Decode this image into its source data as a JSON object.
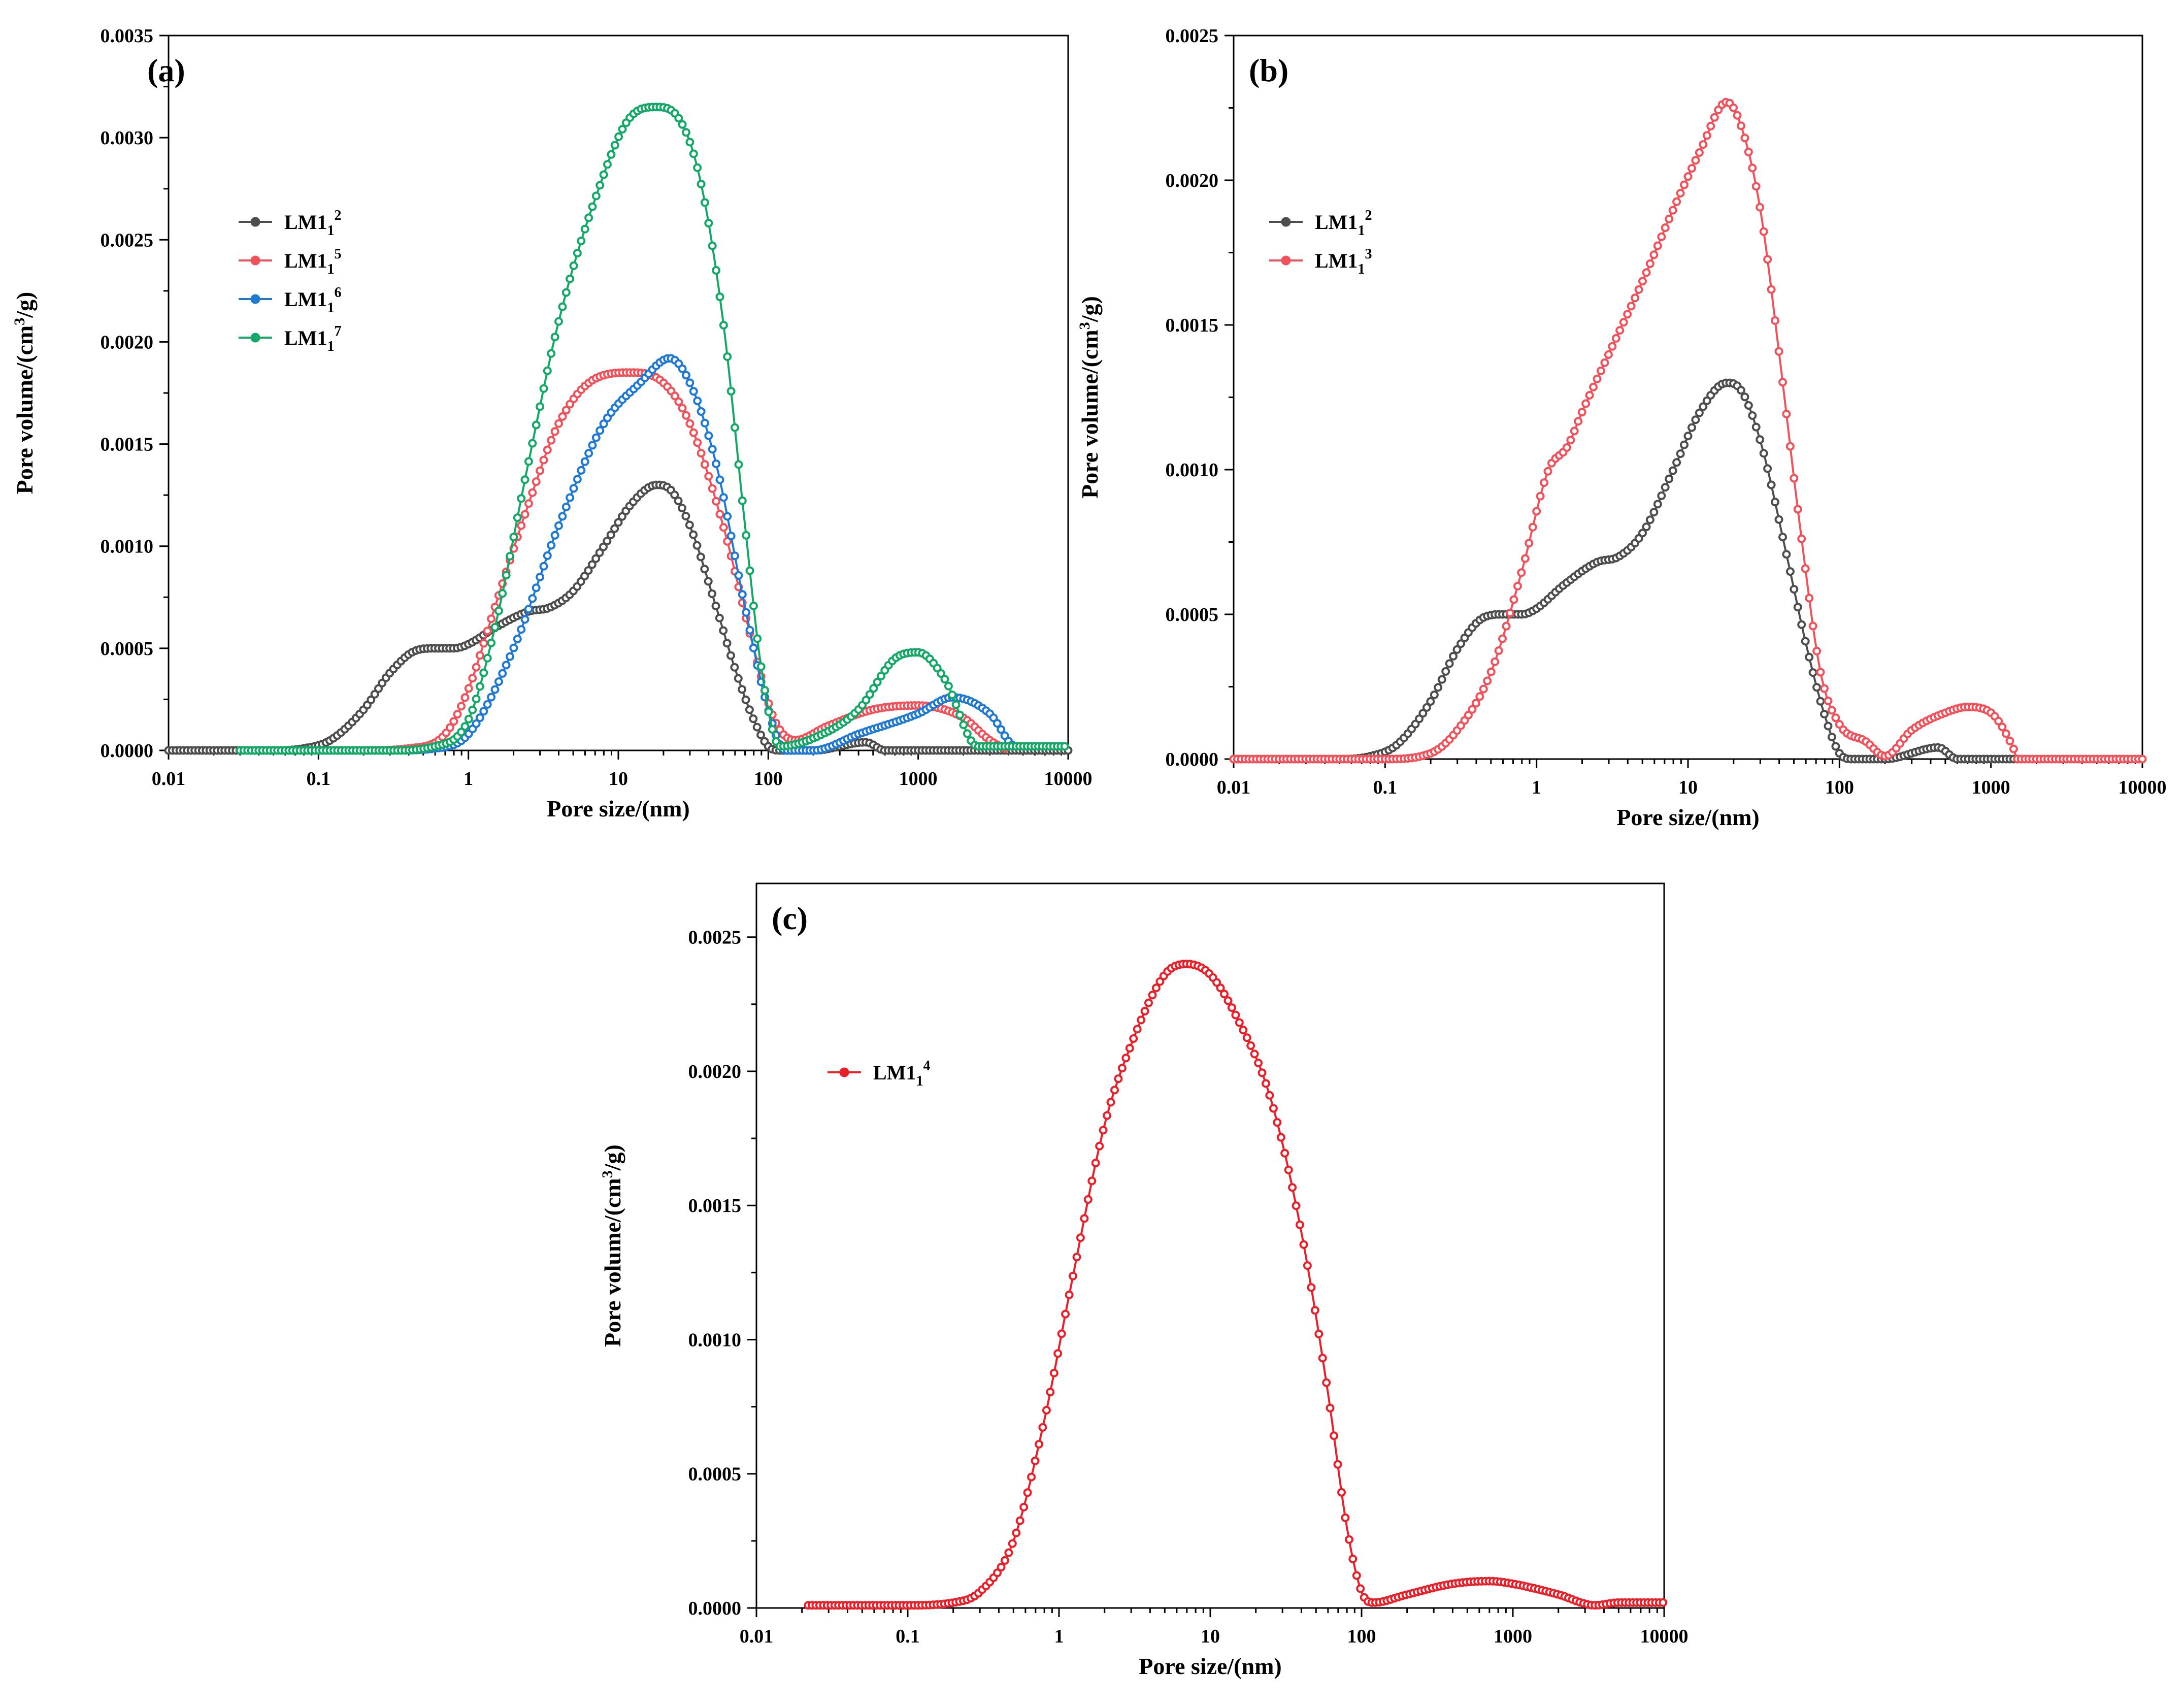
{
  "chart_data": [
    {
      "id": "a",
      "type": "line",
      "panel_label": "(a)",
      "xlabel": "Pore size/(nm)",
      "ylabel": "Pore volume/(cm",
      "ylabel_sup": "3",
      "ylabel_end": "/g)",
      "xscale": "log",
      "xlim": [
        0.01,
        10000
      ],
      "ylim": [
        0,
        0.0035
      ],
      "xticks": [
        "0.01",
        "0.1",
        "1",
        "10",
        "100",
        "1000",
        "10000"
      ],
      "yticks": [
        "0.0000",
        "0.0005",
        "0.0010",
        "0.0015",
        "0.0020",
        "0.0025",
        "0.0030",
        "0.0035"
      ],
      "legend_position": "upper-left",
      "series": [
        {
          "name": "LM1",
          "sub": "1",
          "sup": "2",
          "color": "#4d4d4d",
          "x": [
            0.01,
            0.05,
            0.08,
            0.12,
            0.2,
            0.3,
            0.45,
            0.6,
            0.8,
            1,
            1.5,
            2.5,
            3.5,
            5,
            8,
            12,
            18,
            22,
            30,
            45,
            60,
            80,
            100,
            120,
            200,
            450,
            600,
            1000,
            10000
          ],
          "y": [
            0,
            0,
            1e-05,
            5e-05,
            0.0002,
            0.00038,
            0.00049,
            0.0005,
            0.0005,
            0.00052,
            0.0006,
            0.00068,
            0.0007,
            0.00078,
            0.001,
            0.0012,
            0.0013,
            0.00128,
            0.0011,
            0.0007,
            0.0004,
            0.00015,
            2e-05,
            0,
            0,
            4e-05,
            0,
            0,
            0
          ]
        },
        {
          "name": "LM1",
          "sub": "1",
          "sup": "5",
          "color": "#f0525b",
          "x": [
            0.03,
            0.2,
            0.4,
            0.7,
            1,
            1.5,
            2.5,
            4,
            7,
            12,
            20,
            30,
            50,
            80,
            110,
            150,
            250,
            500,
            1000,
            2000,
            3000,
            4000
          ],
          "y": [
            0,
            0,
            1e-05,
            8e-05,
            0.0003,
            0.0007,
            0.0012,
            0.0016,
            0.00182,
            0.00185,
            0.0018,
            0.0016,
            0.0011,
            0.0005,
            0.00015,
            5e-05,
            0.00012,
            0.0002,
            0.00022,
            0.00016,
            5e-05,
            0
          ]
        },
        {
          "name": "LM1",
          "sub": "1",
          "sup": "6",
          "color": "#1f78d1",
          "x": [
            0.03,
            0.3,
            0.6,
            1,
            2,
            4,
            8,
            14,
            22,
            30,
            45,
            70,
            100,
            130,
            200,
            400,
            1000,
            1700,
            3000,
            4500,
            10000
          ],
          "y": [
            0,
            0,
            1e-05,
            8e-05,
            0.0005,
            0.0011,
            0.0016,
            0.0018,
            0.00192,
            0.0018,
            0.0014,
            0.0007,
            0.0002,
            0,
            0,
            8e-05,
            0.00018,
            0.00026,
            0.00018,
            2e-05,
            2e-05
          ]
        },
        {
          "name": "LM1",
          "sub": "1",
          "sup": "7",
          "color": "#14a866",
          "x": [
            0.03,
            0.3,
            0.6,
            1,
            1.5,
            2.5,
            4,
            7,
            12,
            18,
            25,
            35,
            50,
            70,
            90,
            120,
            200,
            400,
            700,
            1000,
            1500,
            2500,
            10000
          ],
          "y": [
            0,
            0,
            2e-05,
            0.00015,
            0.0006,
            0.0014,
            0.0021,
            0.0027,
            0.0031,
            0.00315,
            0.0031,
            0.0028,
            0.0021,
            0.0011,
            0.0004,
            2e-05,
            6e-05,
            0.0002,
            0.00045,
            0.00048,
            0.00035,
            2e-05,
            2e-05
          ]
        }
      ]
    },
    {
      "id": "b",
      "type": "line",
      "panel_label": "(b)",
      "xlabel": "Pore size/(nm)",
      "ylabel": "Pore volume/(cm",
      "ylabel_sup": "3",
      "ylabel_end": "/g)",
      "xscale": "log",
      "xlim": [
        0.01,
        10000
      ],
      "ylim": [
        0,
        0.0025
      ],
      "xticks": [
        "0.01",
        "0.1",
        "1",
        "10",
        "100",
        "1000",
        "10000"
      ],
      "yticks": [
        "0.0000",
        "0.0005",
        "0.0010",
        "0.0015",
        "0.0020",
        "0.0025"
      ],
      "legend_position": "upper-left",
      "series": [
        {
          "name": "LM1",
          "sub": "1",
          "sup": "2",
          "color": "#4d4d4d",
          "x": [
            0.01,
            0.05,
            0.08,
            0.12,
            0.2,
            0.3,
            0.45,
            0.6,
            0.8,
            1,
            1.5,
            2.5,
            3.5,
            5,
            8,
            12,
            18,
            22,
            30,
            45,
            60,
            80,
            100,
            120,
            200,
            450,
            600,
            1000,
            1500
          ],
          "y": [
            0,
            0,
            1e-05,
            5e-05,
            0.0002,
            0.00038,
            0.00049,
            0.0005,
            0.0005,
            0.00052,
            0.0006,
            0.00068,
            0.0007,
            0.00078,
            0.001,
            0.0012,
            0.0013,
            0.00128,
            0.0011,
            0.0007,
            0.0004,
            0.00015,
            2e-05,
            0,
            0,
            4e-05,
            0,
            0,
            0
          ]
        },
        {
          "name": "LM1",
          "sub": "1",
          "sup": "3",
          "color": "#f0525b",
          "x": [
            0.01,
            0.1,
            0.2,
            0.3,
            0.5,
            0.8,
            1.2,
            1.6,
            2,
            3,
            5,
            8,
            12,
            18,
            22,
            30,
            40,
            55,
            75,
            100,
            150,
            200,
            300,
            500,
            700,
            1000,
            1400,
            1500,
            10000
          ],
          "y": [
            0,
            0,
            2e-05,
            0.0001,
            0.0003,
            0.00065,
            0.001,
            0.00108,
            0.0012,
            0.0014,
            0.00165,
            0.0019,
            0.0021,
            0.00227,
            0.0022,
            0.0019,
            0.0014,
            0.0008,
            0.0003,
            0.00012,
            6e-05,
            1e-05,
            0.0001,
            0.00016,
            0.00018,
            0.00016,
            4e-05,
            0,
            0
          ]
        }
      ]
    },
    {
      "id": "c",
      "type": "line",
      "panel_label": "(c)",
      "xlabel": "Pore size/(nm)",
      "ylabel": "Pore volume/(cm",
      "ylabel_sup": "3",
      "ylabel_end": "/g)",
      "xscale": "log",
      "xlim": [
        0.01,
        10000
      ],
      "ylim": [
        0,
        0.0027
      ],
      "xticks": [
        "0.01",
        "0.1",
        "1",
        "10",
        "100",
        "1000",
        "10000"
      ],
      "yticks": [
        "0.0000",
        "0.0005",
        "0.0010",
        "0.0015",
        "0.0020",
        "0.0025"
      ],
      "legend_position": "upper-left",
      "series": [
        {
          "name": "LM1",
          "sub": "1",
          "sup": "4",
          "color": "#e8202a",
          "x": [
            0.022,
            0.1,
            0.2,
            0.3,
            0.5,
            0.8,
            1.2,
            2,
            3,
            5,
            7,
            10,
            15,
            25,
            40,
            60,
            80,
            100,
            120,
            200,
            400,
            700,
            1000,
            2000,
            3500,
            5000,
            10000
          ],
          "y": [
            1e-05,
            1e-05,
            2e-05,
            6e-05,
            0.00025,
            0.0007,
            0.0012,
            0.0018,
            0.0021,
            0.00236,
            0.0024,
            0.00236,
            0.0022,
            0.0019,
            0.0014,
            0.0008,
            0.0003,
            6e-05,
            2e-05,
            5e-05,
            9e-05,
            0.0001,
            9e-05,
            5e-05,
            1e-05,
            2e-05,
            2e-05
          ]
        }
      ]
    }
  ]
}
